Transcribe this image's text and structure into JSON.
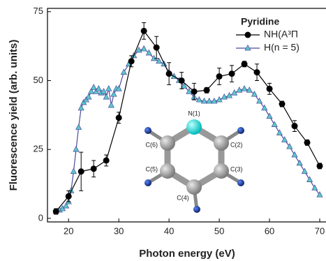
{
  "chart_data": {
    "type": "line",
    "xlabel": "Photon energy (eV)",
    "ylabel": "Fluorescence yield (arb. units)",
    "xlim": [
      15.8,
      71.25
    ],
    "ylim": [
      -1.3,
      76.2
    ],
    "xticks": [
      20,
      30,
      40,
      50,
      60,
      70
    ],
    "yticks": [
      0,
      25,
      50,
      75
    ],
    "legend_title": "Pyridine",
    "legend": "upper right",
    "series": [
      {
        "name": "NH(A³Π",
        "color": "#000000",
        "marker": "circle",
        "x": [
          17.5,
          20,
          22.5,
          25,
          27.5,
          30,
          32.5,
          35,
          37.5,
          40,
          42.5,
          45,
          47.5,
          50,
          52.5,
          55,
          57.5,
          60,
          62.5,
          65,
          67.5,
          70
        ],
        "values": [
          2.5,
          8,
          17,
          18,
          21,
          36.5,
          57,
          68,
          62,
          52.5,
          50,
          46,
          46.5,
          51.5,
          52.5,
          56,
          53,
          47,
          41.5,
          33.5,
          27.5,
          19
        ],
        "errors": [
          1,
          2,
          7,
          3,
          2,
          2,
          2,
          3,
          4,
          4,
          3,
          3,
          1,
          3,
          3,
          1,
          3,
          2,
          1,
          2,
          1,
          1
        ]
      },
      {
        "name": "H(n = 5)",
        "color": "#4b4ba0",
        "marker_color": "#5bc8c8",
        "marker": "triangle",
        "x": [
          17.5,
          18.2,
          18.8,
          19.5,
          20,
          20.5,
          21,
          21.5,
          22,
          22.5,
          23,
          23.5,
          24,
          24.5,
          25,
          25.5,
          26,
          26.5,
          27,
          27.5,
          28,
          28.5,
          29,
          29.5,
          30,
          31,
          32,
          33,
          34,
          35,
          36,
          37,
          38,
          39,
          40,
          41,
          42,
          43,
          44,
          45,
          46,
          47,
          48,
          49,
          50,
          51,
          52,
          53,
          54,
          55,
          56,
          57,
          58,
          59,
          60,
          61,
          62,
          63,
          64,
          65,
          66,
          67,
          68,
          69,
          70
        ],
        "values": [
          2.5,
          3,
          3.5,
          4.5,
          6,
          10,
          17,
          25,
          33,
          40,
          42,
          43,
          44,
          46,
          47.5,
          46,
          47,
          45.5,
          46,
          44,
          47,
          41,
          45,
          47,
          47,
          53,
          56,
          59,
          61,
          61.5,
          60,
          58,
          57,
          56,
          53,
          51.5,
          50,
          48,
          46,
          44,
          43,
          42.5,
          42.5,
          42.5,
          43,
          44,
          44.5,
          45.5,
          46.5,
          47,
          46.5,
          45,
          42.5,
          40,
          37,
          34,
          31,
          28.5,
          26,
          23,
          20,
          17,
          14,
          11,
          8.5
        ]
      }
    ],
    "inset_labels": [
      "N(1)",
      "C(2)",
      "C(3)",
      "C(4)",
      "C(5)",
      "C(6)"
    ]
  }
}
